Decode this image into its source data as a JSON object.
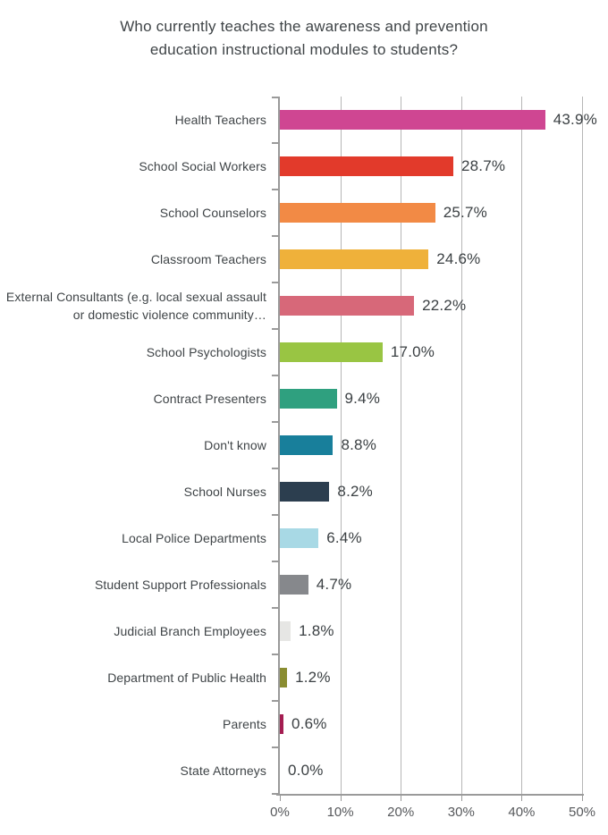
{
  "title": "Who currently teaches the awareness and prevention education instructional modules to students?",
  "chart_data": {
    "type": "bar",
    "orientation": "horizontal",
    "title": "Who currently teaches the awareness and prevention education instructional modules to students?",
    "categories": [
      "Health Teachers",
      "School Social Workers",
      "School Counselors",
      "Classroom Teachers",
      "External Consultants (e.g. local sexual assault or domestic violence community…",
      "School Psychologists",
      "Contract Presenters",
      "Don't know",
      "School Nurses",
      "Local Police Departments",
      "Student Support Professionals",
      "Judicial Branch Employees",
      "Department of Public Health",
      "Parents",
      "State Attorneys"
    ],
    "values": [
      43.9,
      28.7,
      25.7,
      24.6,
      22.2,
      17.0,
      9.4,
      8.8,
      8.2,
      6.4,
      4.7,
      1.8,
      1.2,
      0.6,
      0.0
    ],
    "value_labels": [
      "43.9%",
      "28.7%",
      "25.7%",
      "24.6%",
      "22.2%",
      "17.0%",
      "9.4%",
      "8.8%",
      "8.2%",
      "6.4%",
      "4.7%",
      "1.8%",
      "1.2%",
      "0.6%",
      "0.0%"
    ],
    "bar_colors": [
      "#cf4692",
      "#e23a2b",
      "#f28a45",
      "#efb13a",
      "#d76879",
      "#99c543",
      "#2fa07f",
      "#187f9b",
      "#2c3e4f",
      "#a8d9e5",
      "#86888c",
      "#e6e6e4",
      "#8a8d31",
      "#a41d51",
      "transparent"
    ],
    "xlim": [
      0,
      50
    ],
    "x_ticks": [
      "0%",
      "10%",
      "20%",
      "30%",
      "40%",
      "50%"
    ],
    "xlabel": "",
    "ylabel": "",
    "grid": true,
    "legend": "none",
    "colors": {
      "axis": "#9a9a9a",
      "gridline": "#b6b6b6",
      "title_text": "#3f4447",
      "category_text": "#3f4447",
      "value_text": "#3b4043",
      "tick_text": "#56585b",
      "background": "#ffffff"
    }
  }
}
